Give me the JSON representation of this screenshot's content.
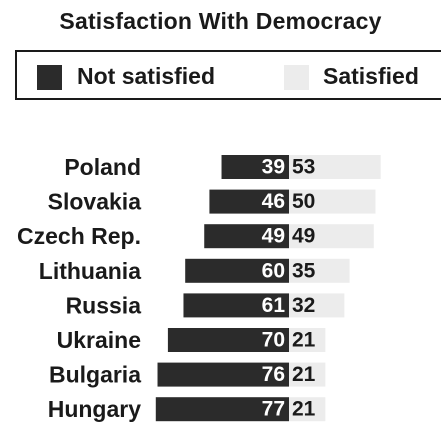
{
  "colors": {
    "not_satisfied": "#2b2b2b",
    "satisfied": "#ececec",
    "text": "#1a1a1a",
    "bar_label": "#ffffff"
  },
  "chart_data": {
    "type": "bar",
    "orientation": "horizontal",
    "stacked": "diverging",
    "title": "Satisfaction With Democracy",
    "legend": {
      "placement": "top",
      "items": [
        "Not satisfied",
        "Satisfied"
      ]
    },
    "categories": [
      "Poland",
      "Slovakia",
      "Czech Rep.",
      "Lithuania",
      "Russia",
      "Ukraine",
      "Bulgaria",
      "Hungary"
    ],
    "series": [
      {
        "name": "Not satisfied",
        "values": [
          39,
          46,
          49,
          60,
          61,
          70,
          76,
          77
        ]
      },
      {
        "name": "Satisfied",
        "values": [
          53,
          50,
          49,
          35,
          32,
          21,
          21,
          21
        ]
      }
    ],
    "grid": false
  }
}
